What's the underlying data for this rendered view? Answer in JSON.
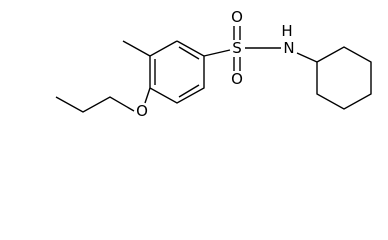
{
  "atoms": [
    {
      "label": "O"
    },
    {
      "label": "S"
    },
    {
      "label": "O"
    },
    {
      "label": "H"
    },
    {
      "label": "N"
    },
    {
      "label": "O"
    }
  ]
}
